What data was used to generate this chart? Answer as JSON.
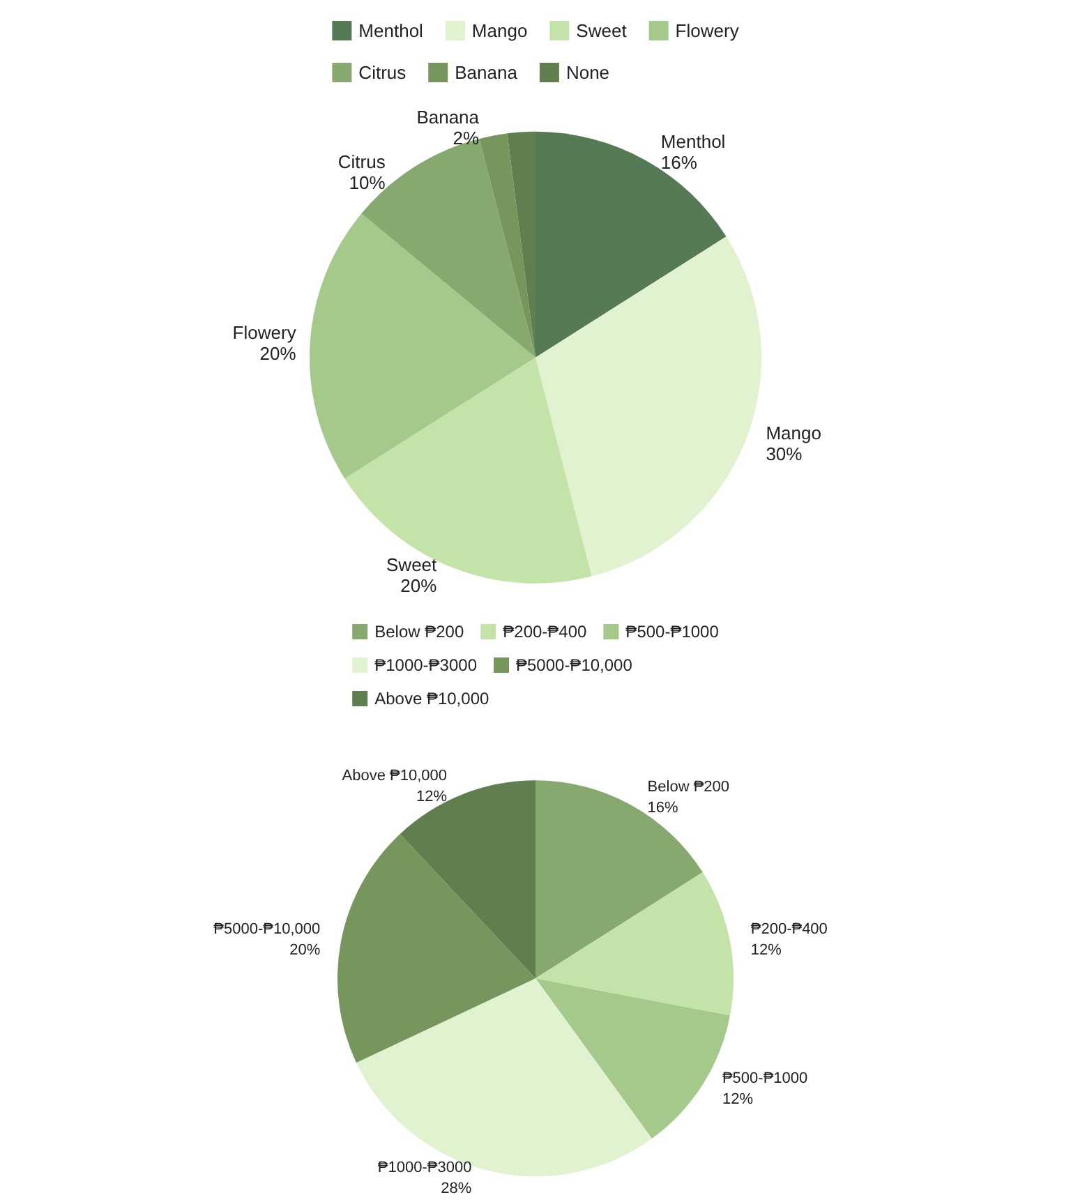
{
  "chart_data": [
    {
      "type": "pie",
      "categories": [
        "Menthol",
        "Mango",
        "Sweet",
        "Flowery",
        "Citrus",
        "Banana",
        "None"
      ],
      "values": [
        16,
        30,
        20,
        20,
        10,
        2,
        2
      ],
      "colors": [
        "#557a55",
        "#e0f2d0",
        "#c3e3a8",
        "#a5c98b",
        "#87a86e",
        "#76965e",
        "#617f4e"
      ],
      "value_labels": [
        "16%",
        "30%",
        "20%",
        "20%",
        "10%",
        "2%",
        null
      ],
      "legend": "top"
    },
    {
      "type": "pie",
      "categories": [
        "Below ₱200",
        "₱200-₱400",
        "₱500-₱1000",
        "₱1000-₱3000",
        "₱5000-₱10,000",
        "Above ₱10,000"
      ],
      "values": [
        16,
        12,
        12,
        28,
        20,
        12
      ],
      "colors": [
        "#87a86e",
        "#c3e3a8",
        "#a5c98b",
        "#e0f2d0",
        "#76965e",
        "#617f4e"
      ],
      "value_labels": [
        "16%",
        "12%",
        "12%",
        "28%",
        "20%",
        "12%"
      ],
      "legend": "top"
    }
  ]
}
